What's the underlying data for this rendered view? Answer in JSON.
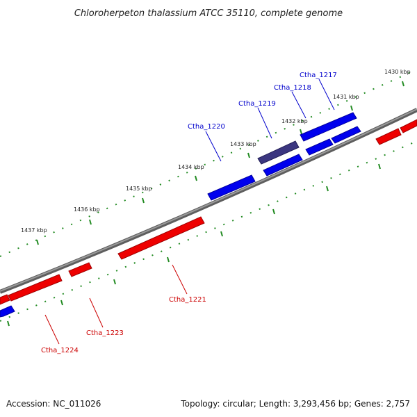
{
  "title": "Chloroherpeton thalassium ATCC 35110, complete genome",
  "footer": {
    "accession": "Accession: NC_011026",
    "topology": "Topology: circular; Length: 3,293,456 bp; Genes: 2,757"
  },
  "colors": {
    "plus_strand": "#0000ee",
    "minus_strand": "#ee0000",
    "highlight_gene": "#3b3680",
    "backbone": "#808080",
    "ticks": "#228b22"
  },
  "scale_labels": [
    "1430 kbp",
    "1431 kbp",
    "1432 kbp",
    "1433 kbp",
    "1434 kbp",
    "1435 kbp",
    "1436 kbp",
    "1437 kbp"
  ],
  "genes_plus": [
    {
      "label": "Ctha_1217"
    },
    {
      "label": "Ctha_1218"
    },
    {
      "label": "Ctha_1219"
    },
    {
      "label": "Ctha_1220"
    }
  ],
  "genes_minus": [
    {
      "label": "Ctha_1221"
    },
    {
      "label": "Ctha_1223"
    },
    {
      "label": "Ctha_1224"
    }
  ]
}
